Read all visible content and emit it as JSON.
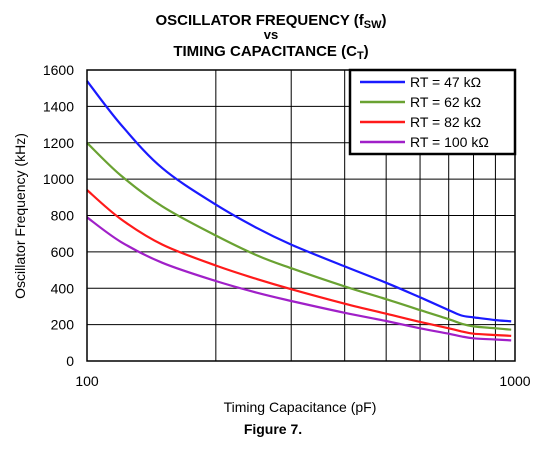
{
  "chart_data": {
    "type": "line",
    "title": {
      "line1_main": "OSCILLATOR FREQUENCY (f",
      "line1_sub": "SW",
      "line1_end": ")",
      "line2": "vs",
      "line3_main": "TIMING CAPACITANCE (C",
      "line3_sub": "T",
      "line3_end": ")"
    },
    "xlabel": "Timing Capacitance (pF)",
    "ylabel": "Oscillator Frequency (kHz)",
    "caption": "Figure 7.",
    "x_scale": "log",
    "xlim": [
      100,
      1000
    ],
    "ylim": [
      0,
      1600
    ],
    "x_tick_labels": [
      "100",
      "1000"
    ],
    "x_minor_gridlines": [
      200,
      300,
      400,
      500,
      600,
      700,
      800,
      900
    ],
    "y_ticks": [
      0,
      200,
      400,
      600,
      800,
      1000,
      1200,
      1400,
      1600
    ],
    "grid": true,
    "legend_position": "top-right",
    "series": [
      {
        "name": "RT = 47 kΩ",
        "color": "#1a1aff",
        "x": [
          100,
          120,
          150,
          200,
          250,
          300,
          400,
          500,
          600,
          700,
          750,
          800,
          900,
          980
        ],
        "y": [
          1540,
          1300,
          1060,
          860,
          730,
          640,
          520,
          430,
          350,
          280,
          250,
          240,
          225,
          218
        ]
      },
      {
        "name": "RT = 62 kΩ",
        "color": "#6aa232",
        "x": [
          100,
          120,
          150,
          200,
          250,
          300,
          400,
          500,
          600,
          700,
          750,
          800,
          900,
          980
        ],
        "y": [
          1200,
          1020,
          850,
          690,
          580,
          510,
          410,
          340,
          280,
          230,
          205,
          190,
          180,
          172
        ]
      },
      {
        "name": "RT = 82 kΩ",
        "color": "#ff1a1a",
        "x": [
          100,
          120,
          150,
          200,
          250,
          300,
          400,
          500,
          600,
          700,
          750,
          800,
          900,
          980
        ],
        "y": [
          940,
          780,
          640,
          525,
          450,
          395,
          315,
          260,
          215,
          180,
          163,
          150,
          143,
          138
        ]
      },
      {
        "name": "RT = 100 kΩ",
        "color": "#a020c8",
        "x": [
          100,
          120,
          150,
          200,
          250,
          300,
          400,
          500,
          600,
          700,
          750,
          800,
          900,
          980
        ],
        "y": [
          790,
          655,
          540,
          440,
          375,
          330,
          265,
          220,
          180,
          150,
          135,
          125,
          118,
          113
        ]
      }
    ]
  }
}
